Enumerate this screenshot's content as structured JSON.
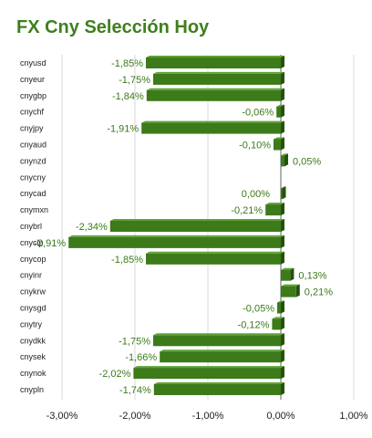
{
  "chart_data": {
    "type": "bar",
    "orientation": "horizontal",
    "title": "FX Cny Selección Hoy",
    "xlabel": "",
    "ylabel": "",
    "categories": [
      "cnyusd",
      "cnyeur",
      "cnygbp",
      "cnychf",
      "cnyjpy",
      "cnyaud",
      "cnynzd",
      "cnycny",
      "cnycad",
      "cnymxn",
      "cnybrl",
      "cnyclp",
      "cnycop",
      "cnyinr",
      "cnykrw",
      "cnysgd",
      "cnytry",
      "cnydkk",
      "cnysek",
      "cnynok",
      "cnypln"
    ],
    "values": [
      -1.85,
      -1.75,
      -1.84,
      -0.06,
      -1.91,
      -0.1,
      0.05,
      null,
      0.0,
      -0.21,
      -2.34,
      -2.91,
      -1.85,
      0.13,
      0.21,
      -0.05,
      -0.12,
      -1.75,
      -1.66,
      -2.02,
      -1.74
    ],
    "value_labels": [
      "-1,85%",
      "-1,75%",
      "-1,84%",
      "-0,06%",
      "-1,91%",
      "-0,10%",
      "0,05%",
      "",
      "0,00%",
      "-0,21%",
      "-2,34%",
      "-2,91%",
      "-1,85%",
      "0,13%",
      "0,21%",
      "-0,05%",
      "-0,12%",
      "-1,75%",
      "-1,66%",
      "-2,02%",
      "-1,74%"
    ],
    "xlim": [
      -3.0,
      1.0
    ],
    "x_ticks": [
      -3.0,
      -2.0,
      -1.0,
      0.0,
      1.0
    ],
    "x_tick_labels": [
      "-3,00%",
      "-2,00%",
      "-1,00%",
      "0,00%",
      "1,00%"
    ],
    "grid": true,
    "legend": "none",
    "colors": {
      "bar": "#3c7a1a",
      "bar_top": "#5da336",
      "bar_side": "#24520c",
      "value_text": "#3a7a18",
      "title": "#3f7f1e",
      "grid": "#d9d9d9",
      "axis": "#7f7f7f"
    }
  }
}
